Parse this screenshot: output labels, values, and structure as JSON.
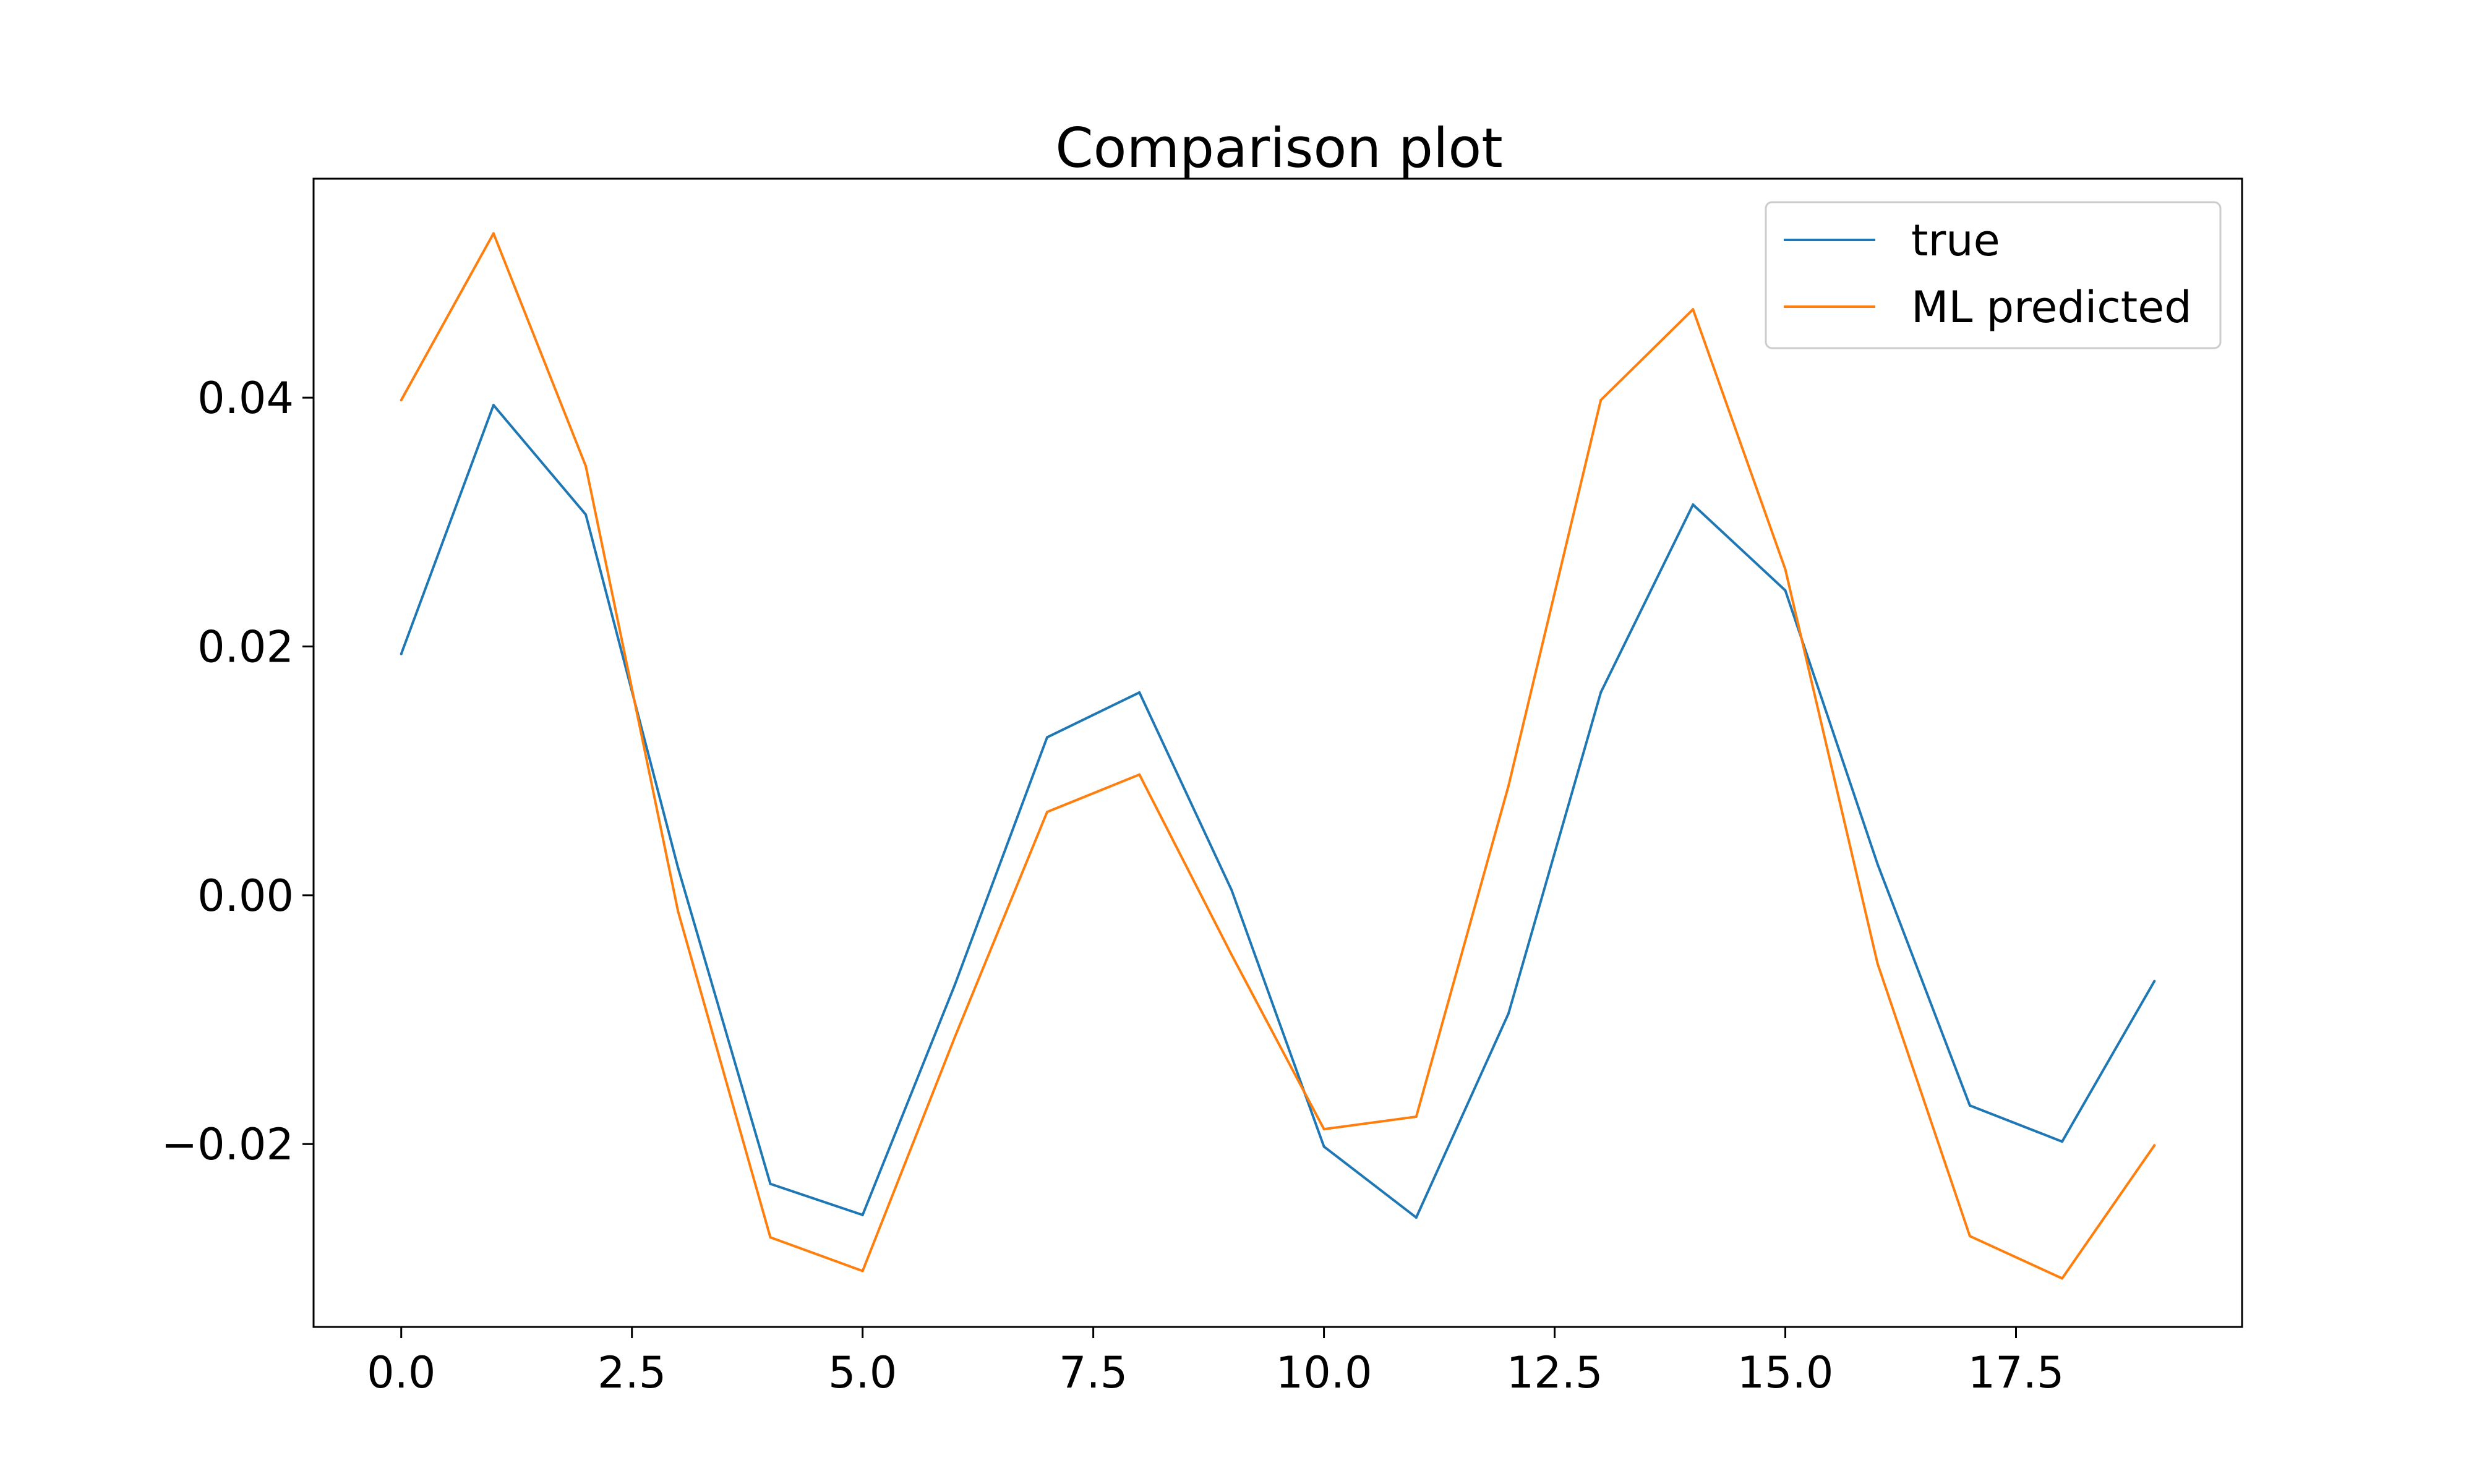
{
  "chart_data": {
    "type": "line",
    "title": "Comparison plot",
    "xlabel": "",
    "ylabel": "",
    "xlim": [
      -0.95,
      19.95
    ],
    "ylim": [
      -0.0347,
      0.0576
    ],
    "x_ticks": [
      0.0,
      2.5,
      5.0,
      7.5,
      10.0,
      12.5,
      15.0,
      17.5
    ],
    "x_tick_labels": [
      "0.0",
      "2.5",
      "5.0",
      "7.5",
      "10.0",
      "12.5",
      "15.0",
      "17.5"
    ],
    "y_ticks": [
      -0.02,
      0.0,
      0.02,
      0.04
    ],
    "y_tick_labels": [
      "−0.02",
      "0.00",
      "0.02",
      "0.04"
    ],
    "grid": false,
    "legend_position": "top-right",
    "x": [
      0,
      1,
      2,
      3,
      4,
      5,
      6,
      7,
      8,
      9,
      10,
      11,
      12,
      13,
      14,
      15,
      16,
      17,
      18,
      19
    ],
    "series": [
      {
        "name": "true",
        "color": "#1f77b4",
        "values": [
          0.0194,
          0.0394,
          0.0306,
          0.0022,
          -0.0232,
          -0.0257,
          -0.0072,
          0.0127,
          0.0163,
          0.0004,
          -0.0202,
          -0.0259,
          -0.0095,
          0.0163,
          0.0314,
          0.0245,
          0.0025,
          -0.0169,
          -0.0198,
          -0.0069
        ]
      },
      {
        "name": "ML predicted",
        "color": "#ff7f0e",
        "values": [
          0.0398,
          0.0532,
          0.0345,
          -0.0013,
          -0.0275,
          -0.0302,
          -0.0114,
          0.0067,
          0.0097,
          -0.0048,
          -0.0188,
          -0.0178,
          0.0088,
          0.0398,
          0.0471,
          0.0262,
          -0.0055,
          -0.0274,
          -0.0308,
          -0.0201
        ]
      }
    ]
  }
}
